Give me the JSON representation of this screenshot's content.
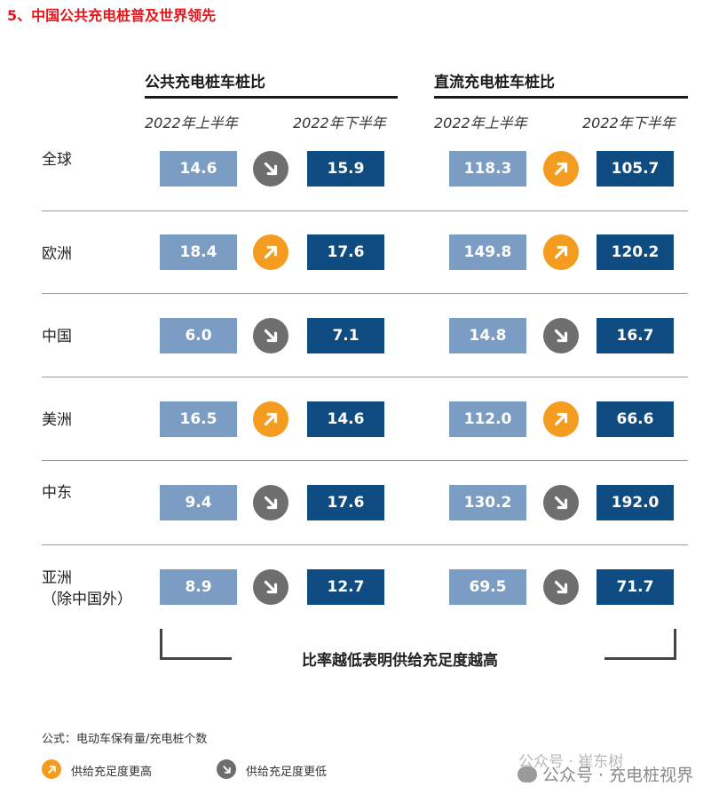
{
  "title": "5、中国公共充电桩普及世界领先",
  "groups": [
    {
      "heading": "公共充电桩车桩比",
      "period1": "2022年上半年",
      "period2": "2022年下半年"
    },
    {
      "heading": "直流充电桩车桩比",
      "period1": "2022年上半年",
      "period2": "2022年下半年"
    }
  ],
  "rows": [
    {
      "region": [
        "全球"
      ],
      "pub": {
        "h1": "14.6",
        "dir": "down",
        "h2": "15.9"
      },
      "dc": {
        "h1": "118.3",
        "dir": "up",
        "h2": "105.7"
      }
    },
    {
      "region": [
        "欧洲"
      ],
      "pub": {
        "h1": "18.4",
        "dir": "up",
        "h2": "17.6"
      },
      "dc": {
        "h1": "149.8",
        "dir": "up",
        "h2": "120.2"
      }
    },
    {
      "region": [
        "中国"
      ],
      "pub": {
        "h1": "6.0",
        "dir": "down",
        "h2": "7.1"
      },
      "dc": {
        "h1": "14.8",
        "dir": "down",
        "h2": "16.7"
      }
    },
    {
      "region": [
        "美洲"
      ],
      "pub": {
        "h1": "16.5",
        "dir": "up",
        "h2": "14.6"
      },
      "dc": {
        "h1": "112.0",
        "dir": "up",
        "h2": "66.6"
      }
    },
    {
      "region": [
        "中东"
      ],
      "pub": {
        "h1": "9.4",
        "dir": "down",
        "h2": "17.6"
      },
      "dc": {
        "h1": "130.2",
        "dir": "down",
        "h2": "192.0"
      }
    },
    {
      "region": [
        "亚洲",
        "（除中国外）"
      ],
      "pub": {
        "h1": "8.9",
        "dir": "down",
        "h2": "12.7"
      },
      "dc": {
        "h1": "69.5",
        "dir": "down",
        "h2": "71.7"
      }
    }
  ],
  "footnote": "比率越低表明供给充足度越高",
  "formula": "公式：电动车保有量/充电桩个数",
  "legend": {
    "up": "供给充足度更高",
    "down": "供给充足度更低"
  },
  "watermark": {
    "line1": "公众号 · 崔东树",
    "line2": "公众号 · 充电桩视界"
  },
  "colors": {
    "title": "#e3171b",
    "h1": "#7b9cc3",
    "h2": "#0f4c81",
    "up": "#f39c1f",
    "down": "#6e6e6e"
  },
  "icons": {
    "up": "arrow-up-right-icon",
    "down": "arrow-down-right-icon"
  }
}
